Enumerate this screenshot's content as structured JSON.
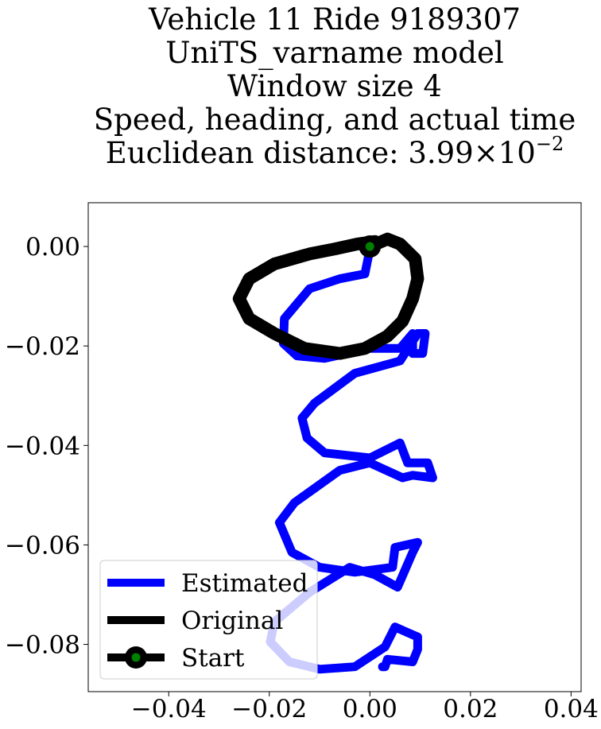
{
  "chart_data": {
    "type": "line",
    "title_lines": [
      "Vehicle 11 Ride 9189307",
      "UniTS_varname model",
      "Window size 4",
      "Speed, heading, and actual time"
    ],
    "distance_prefix": "Euclidean distance: ",
    "distance_mantissa": "3.99",
    "distance_times": "×",
    "distance_base": "10",
    "distance_exponent": "−2",
    "xlim": [
      -0.056,
      0.042
    ],
    "ylim": [
      -0.0895,
      0.0088
    ],
    "x_ticks": [
      {
        "value": -0.04,
        "label": "−0.04"
      },
      {
        "value": -0.02,
        "label": "−0.02"
      },
      {
        "value": 0.0,
        "label": "0.00"
      },
      {
        "value": 0.02,
        "label": "0.02"
      },
      {
        "value": 0.04,
        "label": "0.04"
      }
    ],
    "y_ticks": [
      {
        "value": 0.0,
        "label": "0.00"
      },
      {
        "value": -0.02,
        "label": "−0.02"
      },
      {
        "value": -0.04,
        "label": "−0.04"
      },
      {
        "value": -0.06,
        "label": "−0.06"
      },
      {
        "value": -0.08,
        "label": "−0.08"
      }
    ],
    "grid": false,
    "legend_position": "lower-left",
    "legend": [
      {
        "label": "Estimated",
        "color": "#0000ff",
        "marker": "line"
      },
      {
        "label": "Original",
        "color": "#000000",
        "marker": "line"
      },
      {
        "label": "Start",
        "color": "#000000",
        "marker": "circle",
        "marker_face": "#008000"
      }
    ],
    "series": [
      {
        "name": "Estimated",
        "color": "#0000ff",
        "x": [
          0.0,
          -0.001,
          -0.006,
          -0.012,
          -0.017,
          -0.0172,
          -0.0145,
          -0.009,
          0.0,
          0.006,
          0.0085,
          0.0085,
          0.0105,
          0.011,
          0.0095,
          0.006,
          -0.003,
          -0.011,
          -0.0135,
          -0.0125,
          -0.009,
          0.0,
          0.006,
          0.0075,
          0.0115,
          0.0125,
          0.0085,
          0.0065,
          0.0,
          -0.006,
          -0.015,
          -0.018,
          -0.0155,
          -0.01,
          -0.003,
          0.0045,
          0.005,
          0.0095,
          0.0085,
          0.0055,
          0.001,
          -0.004,
          -0.012,
          -0.019,
          -0.0198,
          -0.016,
          -0.01,
          -0.003,
          0.003,
          0.005,
          0.0095,
          0.0095,
          0.0085,
          0.0035,
          0.003,
          0.0025
        ],
        "y": [
          -0.0005,
          -0.0055,
          -0.0065,
          -0.0085,
          -0.0145,
          -0.0195,
          -0.022,
          -0.0225,
          -0.0205,
          -0.0205,
          -0.0175,
          -0.0215,
          -0.0215,
          -0.0175,
          -0.0175,
          -0.023,
          -0.0255,
          -0.0315,
          -0.0345,
          -0.0385,
          -0.0415,
          -0.0425,
          -0.0395,
          -0.0435,
          -0.0435,
          -0.0465,
          -0.046,
          -0.0465,
          -0.0435,
          -0.045,
          -0.0515,
          -0.0555,
          -0.0615,
          -0.0645,
          -0.0655,
          -0.0645,
          -0.0605,
          -0.0595,
          -0.0615,
          -0.0685,
          -0.066,
          -0.0645,
          -0.0695,
          -0.0755,
          -0.0795,
          -0.0835,
          -0.085,
          -0.0845,
          -0.0805,
          -0.0765,
          -0.0785,
          -0.081,
          -0.0835,
          -0.083,
          -0.0845,
          -0.0845
        ]
      },
      {
        "name": "Original",
        "color": "#000000",
        "x": [
          0.0,
          0.0035,
          0.006,
          0.009,
          0.0095,
          0.0085,
          0.0065,
          0.0035,
          -0.001,
          -0.006,
          -0.013,
          -0.019,
          -0.024,
          -0.026,
          -0.024,
          -0.019,
          -0.012,
          -0.007,
          -0.0025,
          0.001,
          0.0
        ],
        "y": [
          0.0,
          0.0015,
          0.0005,
          -0.0025,
          -0.0065,
          -0.0105,
          -0.015,
          -0.018,
          -0.0205,
          -0.0215,
          -0.0205,
          -0.0175,
          -0.0145,
          -0.0105,
          -0.0065,
          -0.0035,
          -0.0015,
          -0.0005,
          0.0005,
          0.001,
          0.0
        ]
      }
    ],
    "start_point": {
      "x": 0.0,
      "y": 0.0
    }
  }
}
